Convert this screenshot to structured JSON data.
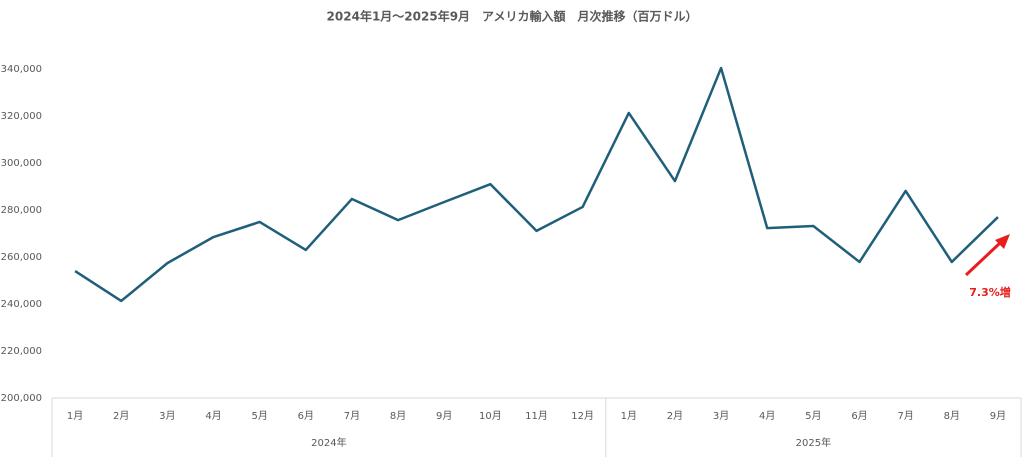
{
  "chart_data": {
    "type": "line",
    "title": "2024年1月～2025年9月　アメリカ輸入額　月次推移（百万ドル）",
    "category_groups": [
      {
        "label": "2024年",
        "categories": [
          "1月",
          "2月",
          "3月",
          "4月",
          "5月",
          "6月",
          "7月",
          "8月",
          "9月",
          "10月",
          "11月",
          "12月"
        ]
      },
      {
        "label": "2025年",
        "categories": [
          "1月",
          "2月",
          "3月",
          "4月",
          "5月",
          "6月",
          "7月",
          "8月",
          "9月"
        ]
      }
    ],
    "series": [
      {
        "name": "アメリカ輸入額",
        "color": "#1f5f7a",
        "values": [
          254000,
          241300,
          257400,
          268500,
          274900,
          263000,
          284700,
          275700,
          283400,
          291000,
          271100,
          281300,
          321300,
          292300,
          340400,
          272300,
          273200,
          257900,
          288100,
          257900,
          277000
        ]
      }
    ],
    "ylim": [
      200000,
      350000
    ],
    "yticks": [
      {
        "value": 200000,
        "label": "200,000"
      },
      {
        "value": 220000,
        "label": "220,000"
      },
      {
        "value": 240000,
        "label": "240,000"
      },
      {
        "value": 260000,
        "label": "260,000"
      },
      {
        "value": 280000,
        "label": "280,000"
      },
      {
        "value": 300000,
        "label": "300,000"
      },
      {
        "value": 320000,
        "label": "320,000"
      },
      {
        "value": 340000,
        "label": "340,000"
      }
    ],
    "grid": false,
    "annotation": {
      "text": "7.3%増",
      "color": "#e81e1e"
    }
  }
}
